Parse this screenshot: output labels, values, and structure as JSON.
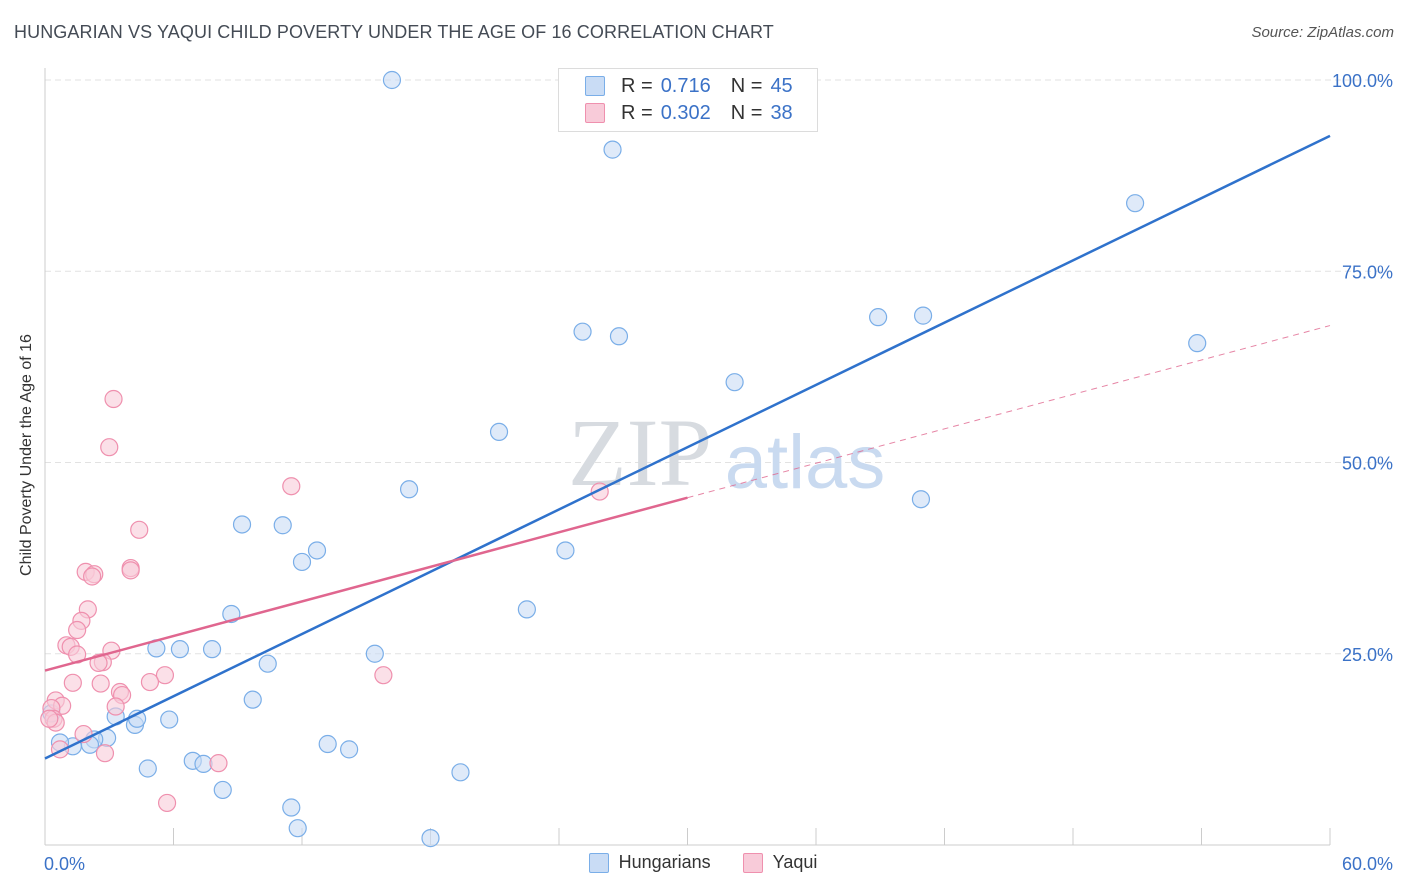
{
  "title": "HUNGARIAN VS YAQUI CHILD POVERTY UNDER THE AGE OF 16 CORRELATION CHART",
  "source": "Source: ZipAtlas.com",
  "watermark": {
    "zip": "ZIP",
    "atlas": "atlas"
  },
  "legend_top": {
    "rows": [
      {
        "r_label": "R =",
        "r_value": "0.716",
        "n_label": "N =",
        "n_value": "45",
        "color": "#a8c8f0"
      },
      {
        "r_label": "R =",
        "r_value": "0.302",
        "n_label": "N =",
        "n_value": "38",
        "color": "#f6b8cb"
      }
    ]
  },
  "chart_data": {
    "type": "scatter",
    "title": "HUNGARIAN VS YAQUI CHILD POVERTY UNDER THE AGE OF 16 CORRELATION CHART",
    "xlabel": "",
    "ylabel": "Child Poverty Under the Age of 16",
    "xlim": [
      0,
      60
    ],
    "ylim": [
      0,
      100
    ],
    "x_tick_labels": [
      "0.0%",
      "60.0%"
    ],
    "y_ticks": [
      25,
      50,
      75,
      100
    ],
    "y_tick_labels": [
      "25.0%",
      "50.0%",
      "75.0%",
      "100.0%"
    ],
    "grid": true,
    "legend_placement": "bottom",
    "series": [
      {
        "name": "Hungarians",
        "color": "#7aaee8",
        "fill": "#c9dcf5",
        "line_color": "#2f72cc",
        "trend": {
          "x": [
            0,
            60
          ],
          "y": [
            11.3,
            92.7
          ]
        },
        "points": [
          [
            16.2,
            100
          ],
          [
            26.5,
            90.9
          ],
          [
            50.9,
            83.9
          ],
          [
            26.8,
            66.5
          ],
          [
            25.1,
            67.1
          ],
          [
            38.9,
            69.0
          ],
          [
            41.0,
            69.2
          ],
          [
            53.8,
            65.6
          ],
          [
            32.2,
            60.5
          ],
          [
            21.2,
            54.0
          ],
          [
            17.0,
            46.5
          ],
          [
            40.9,
            45.2
          ],
          [
            9.2,
            41.9
          ],
          [
            11.1,
            41.8
          ],
          [
            12.7,
            38.5
          ],
          [
            12.0,
            37.0
          ],
          [
            24.3,
            38.5
          ],
          [
            22.5,
            30.8
          ],
          [
            8.7,
            30.2
          ],
          [
            5.2,
            25.7
          ],
          [
            6.3,
            25.6
          ],
          [
            7.8,
            25.6
          ],
          [
            15.4,
            25.0
          ],
          [
            10.4,
            23.7
          ],
          [
            9.7,
            19.0
          ],
          [
            3.3,
            16.8
          ],
          [
            5.8,
            16.4
          ],
          [
            4.2,
            15.7
          ],
          [
            4.3,
            16.5
          ],
          [
            2.9,
            14.0
          ],
          [
            2.3,
            13.8
          ],
          [
            2.1,
            13.1
          ],
          [
            1.3,
            12.9
          ],
          [
            0.7,
            13.4
          ],
          [
            13.2,
            13.2
          ],
          [
            14.2,
            12.5
          ],
          [
            6.9,
            11.0
          ],
          [
            7.4,
            10.6
          ],
          [
            4.8,
            10.0
          ],
          [
            19.4,
            9.5
          ],
          [
            8.3,
            7.2
          ],
          [
            11.5,
            4.9
          ],
          [
            11.8,
            2.2
          ],
          [
            18.0,
            0.9
          ],
          [
            0.3,
            17.2
          ]
        ]
      },
      {
        "name": "Yaqui",
        "color": "#ef90ae",
        "fill": "#f8cbd9",
        "line_color": "#e0668f",
        "trend": {
          "x": [
            0,
            30
          ],
          "y": [
            22.8,
            45.4
          ]
        },
        "trend_extension": {
          "x": [
            30,
            60
          ],
          "y": [
            45.4,
            67.9
          ]
        },
        "points": [
          [
            3.2,
            58.3
          ],
          [
            3.0,
            52.0
          ],
          [
            11.5,
            46.9
          ],
          [
            25.9,
            46.2
          ],
          [
            4.4,
            41.2
          ],
          [
            4.0,
            36.2
          ],
          [
            4.0,
            35.9
          ],
          [
            1.9,
            35.7
          ],
          [
            2.3,
            35.4
          ],
          [
            2.2,
            35.1
          ],
          [
            2.0,
            30.8
          ],
          [
            1.7,
            29.3
          ],
          [
            1.5,
            28.1
          ],
          [
            1.0,
            26.1
          ],
          [
            1.2,
            25.9
          ],
          [
            1.5,
            24.9
          ],
          [
            3.1,
            25.4
          ],
          [
            2.7,
            23.9
          ],
          [
            2.5,
            23.8
          ],
          [
            5.6,
            22.2
          ],
          [
            4.9,
            21.3
          ],
          [
            1.3,
            21.2
          ],
          [
            2.6,
            21.1
          ],
          [
            15.8,
            22.2
          ],
          [
            3.5,
            20.0
          ],
          [
            3.6,
            19.6
          ],
          [
            0.5,
            18.9
          ],
          [
            0.8,
            18.2
          ],
          [
            3.3,
            18.1
          ],
          [
            0.3,
            17.9
          ],
          [
            0.4,
            16.5
          ],
          [
            0.5,
            16.0
          ],
          [
            1.8,
            14.5
          ],
          [
            0.2,
            16.5
          ],
          [
            0.7,
            12.5
          ],
          [
            2.8,
            12.0
          ],
          [
            8.1,
            10.7
          ],
          [
            5.7,
            5.5
          ]
        ]
      }
    ]
  }
}
